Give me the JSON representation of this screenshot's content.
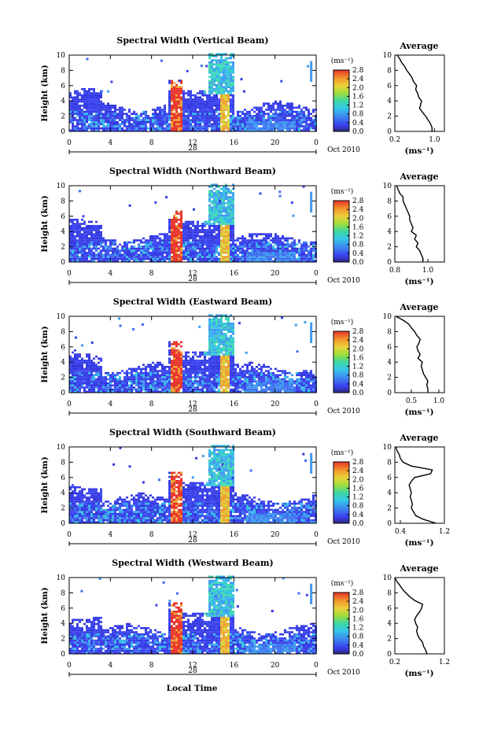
{
  "figure": {
    "x_axis_title": "Local Time",
    "date_day": "28",
    "date_label": "Oct 2010",
    "average_title": "Average",
    "colorbar_unit": "(ms⁻¹)",
    "avg_xlabel": "(ms⁻¹)"
  },
  "chart_data": [
    {
      "type": "heatmap",
      "title": "Spectral Width (Vertical Beam)",
      "ylabel": "Height (km)",
      "xlim": [
        0,
        24
      ],
      "ylim": [
        0,
        10
      ],
      "x_ticks": [
        "0",
        "4",
        "8",
        "12",
        "16",
        "20",
        "0"
      ],
      "y_ticks": [
        "0",
        "2",
        "4",
        "6",
        "8",
        "10"
      ],
      "colorbar": {
        "ticks": [
          "0.0",
          "0.4",
          "0.8",
          "1.2",
          "1.6",
          "2.0",
          "2.4",
          "2.8"
        ],
        "range": [
          0,
          2.8
        ]
      },
      "average": {
        "title": "Average",
        "x_ticks": [
          "0.2",
          "1.0"
        ],
        "xlim": [
          0.2,
          1.2
        ],
        "height_km": [
          0,
          0.5,
          1,
          1.5,
          2,
          2.5,
          3,
          3.5,
          4,
          4.5,
          5,
          5.5,
          6,
          6.5,
          7,
          7.5,
          8,
          8.5,
          9,
          9.5,
          10
        ],
        "width": [
          0.95,
          0.95,
          0.92,
          0.87,
          0.82,
          0.76,
          0.7,
          0.72,
          0.74,
          0.68,
          0.66,
          0.62,
          0.64,
          0.58,
          0.55,
          0.5,
          0.44,
          0.4,
          0.34,
          0.3,
          0.25
        ]
      }
    },
    {
      "type": "heatmap",
      "title": "Spectral Width (Northward Beam)",
      "ylabel": "Height (km)",
      "xlim": [
        0,
        24
      ],
      "ylim": [
        0,
        10
      ],
      "x_ticks": [
        "0",
        "4",
        "8",
        "12",
        "16",
        "20",
        "0"
      ],
      "y_ticks": [
        "0",
        "2",
        "4",
        "6",
        "8",
        "10"
      ],
      "colorbar": {
        "ticks": [
          "0.0",
          "0.4",
          "0.8",
          "1.2",
          "1.6",
          "2.0",
          "2.4",
          "2.8"
        ],
        "range": [
          0,
          2.8
        ]
      },
      "average": {
        "title": "Average",
        "x_ticks": [
          "0.8",
          "1.0"
        ],
        "xlim": [
          0.8,
          1.1
        ],
        "height_km": [
          0,
          0.5,
          1,
          1.5,
          2,
          2.5,
          3,
          3.5,
          4,
          4.5,
          5,
          5.5,
          6,
          6.5,
          7,
          7.5,
          8,
          8.5,
          9,
          9.5,
          10
        ],
        "width": [
          0.97,
          0.97,
          0.96,
          0.95,
          0.93,
          0.94,
          0.92,
          0.93,
          0.9,
          0.91,
          0.9,
          0.89,
          0.89,
          0.88,
          0.87,
          0.86,
          0.85,
          0.85,
          0.83,
          0.82,
          0.81
        ]
      }
    },
    {
      "type": "heatmap",
      "title": "Spectral Width (Eastward Beam)",
      "ylabel": "Height (km)",
      "xlim": [
        0,
        24
      ],
      "ylim": [
        0,
        10
      ],
      "x_ticks": [
        "0",
        "4",
        "8",
        "12",
        "16",
        "20",
        "0"
      ],
      "y_ticks": [
        "0",
        "2",
        "4",
        "6",
        "8",
        "10"
      ],
      "colorbar": {
        "ticks": [
          "0.0",
          "0.4",
          "0.8",
          "1.2",
          "1.6",
          "2.0",
          "2.4",
          "2.8"
        ],
        "range": [
          0,
          2.8
        ]
      },
      "average": {
        "title": "Average",
        "x_ticks": [
          "0.5",
          "1.0"
        ],
        "xlim": [
          0.2,
          1.1
        ],
        "height_km": [
          0,
          0.5,
          1,
          1.5,
          2,
          2.5,
          3,
          3.5,
          4,
          4.5,
          5,
          5.5,
          6,
          6.5,
          7,
          7.5,
          8,
          8.5,
          9,
          9.5,
          10
        ],
        "width": [
          0.8,
          0.8,
          0.78,
          0.8,
          0.76,
          0.72,
          0.7,
          0.68,
          0.7,
          0.62,
          0.66,
          0.62,
          0.6,
          0.64,
          0.66,
          0.6,
          0.56,
          0.5,
          0.45,
          0.35,
          0.22
        ]
      }
    },
    {
      "type": "heatmap",
      "title": "Spectral Width (Southward Beam)",
      "ylabel": "Height (km)",
      "xlim": [
        0,
        24
      ],
      "ylim": [
        0,
        10
      ],
      "x_ticks": [
        "0",
        "4",
        "8",
        "12",
        "16",
        "20",
        "0"
      ],
      "y_ticks": [
        "0",
        "2",
        "4",
        "6",
        "8",
        "10"
      ],
      "colorbar": {
        "ticks": [
          "0.0",
          "0.4",
          "0.8",
          "1.2",
          "1.6",
          "2.0",
          "2.4",
          "2.8"
        ],
        "range": [
          0,
          2.8
        ]
      },
      "average": {
        "title": "Average",
        "x_ticks": [
          "0.4",
          "1.2"
        ],
        "xlim": [
          0.3,
          1.2
        ],
        "height_km": [
          0,
          0.5,
          1,
          1.5,
          2,
          2.5,
          3,
          3.5,
          4,
          4.5,
          5,
          5.5,
          6,
          6.5,
          7,
          7.5,
          8,
          8.5,
          9,
          9.5,
          10
        ],
        "width": [
          1.05,
          0.82,
          0.68,
          0.64,
          0.6,
          0.62,
          0.6,
          0.58,
          0.6,
          0.58,
          0.56,
          0.6,
          0.66,
          0.95,
          0.98,
          0.6,
          0.45,
          0.4,
          0.38,
          0.34,
          0.32
        ]
      }
    },
    {
      "type": "heatmap",
      "title": "Spectral Width (Westward Beam)",
      "ylabel": "Height (km)",
      "xlim": [
        0,
        24
      ],
      "ylim": [
        0,
        10
      ],
      "x_ticks": [
        "0",
        "4",
        "8",
        "12",
        "16",
        "20",
        "0"
      ],
      "y_ticks": [
        "0",
        "2",
        "4",
        "6",
        "8",
        "10"
      ],
      "colorbar": {
        "ticks": [
          "0.0",
          "0.4",
          "0.8",
          "1.2",
          "1.6",
          "2.0",
          "2.4",
          "2.8"
        ],
        "range": [
          0,
          2.8
        ]
      },
      "average": {
        "title": "Average",
        "x_ticks": [
          "0.2",
          "1.2"
        ],
        "xlim": [
          0.2,
          1.2
        ],
        "height_km": [
          0,
          0.5,
          1,
          1.5,
          2,
          2.5,
          3,
          3.5,
          4,
          4.5,
          5,
          5.5,
          6,
          6.5,
          7,
          7.5,
          8,
          8.5,
          9,
          9.5,
          10
        ],
        "width": [
          0.85,
          0.82,
          0.78,
          0.76,
          0.7,
          0.66,
          0.64,
          0.66,
          0.62,
          0.6,
          0.64,
          0.7,
          0.74,
          0.76,
          0.6,
          0.5,
          0.42,
          0.35,
          0.3,
          0.24,
          0.2
        ]
      }
    }
  ]
}
